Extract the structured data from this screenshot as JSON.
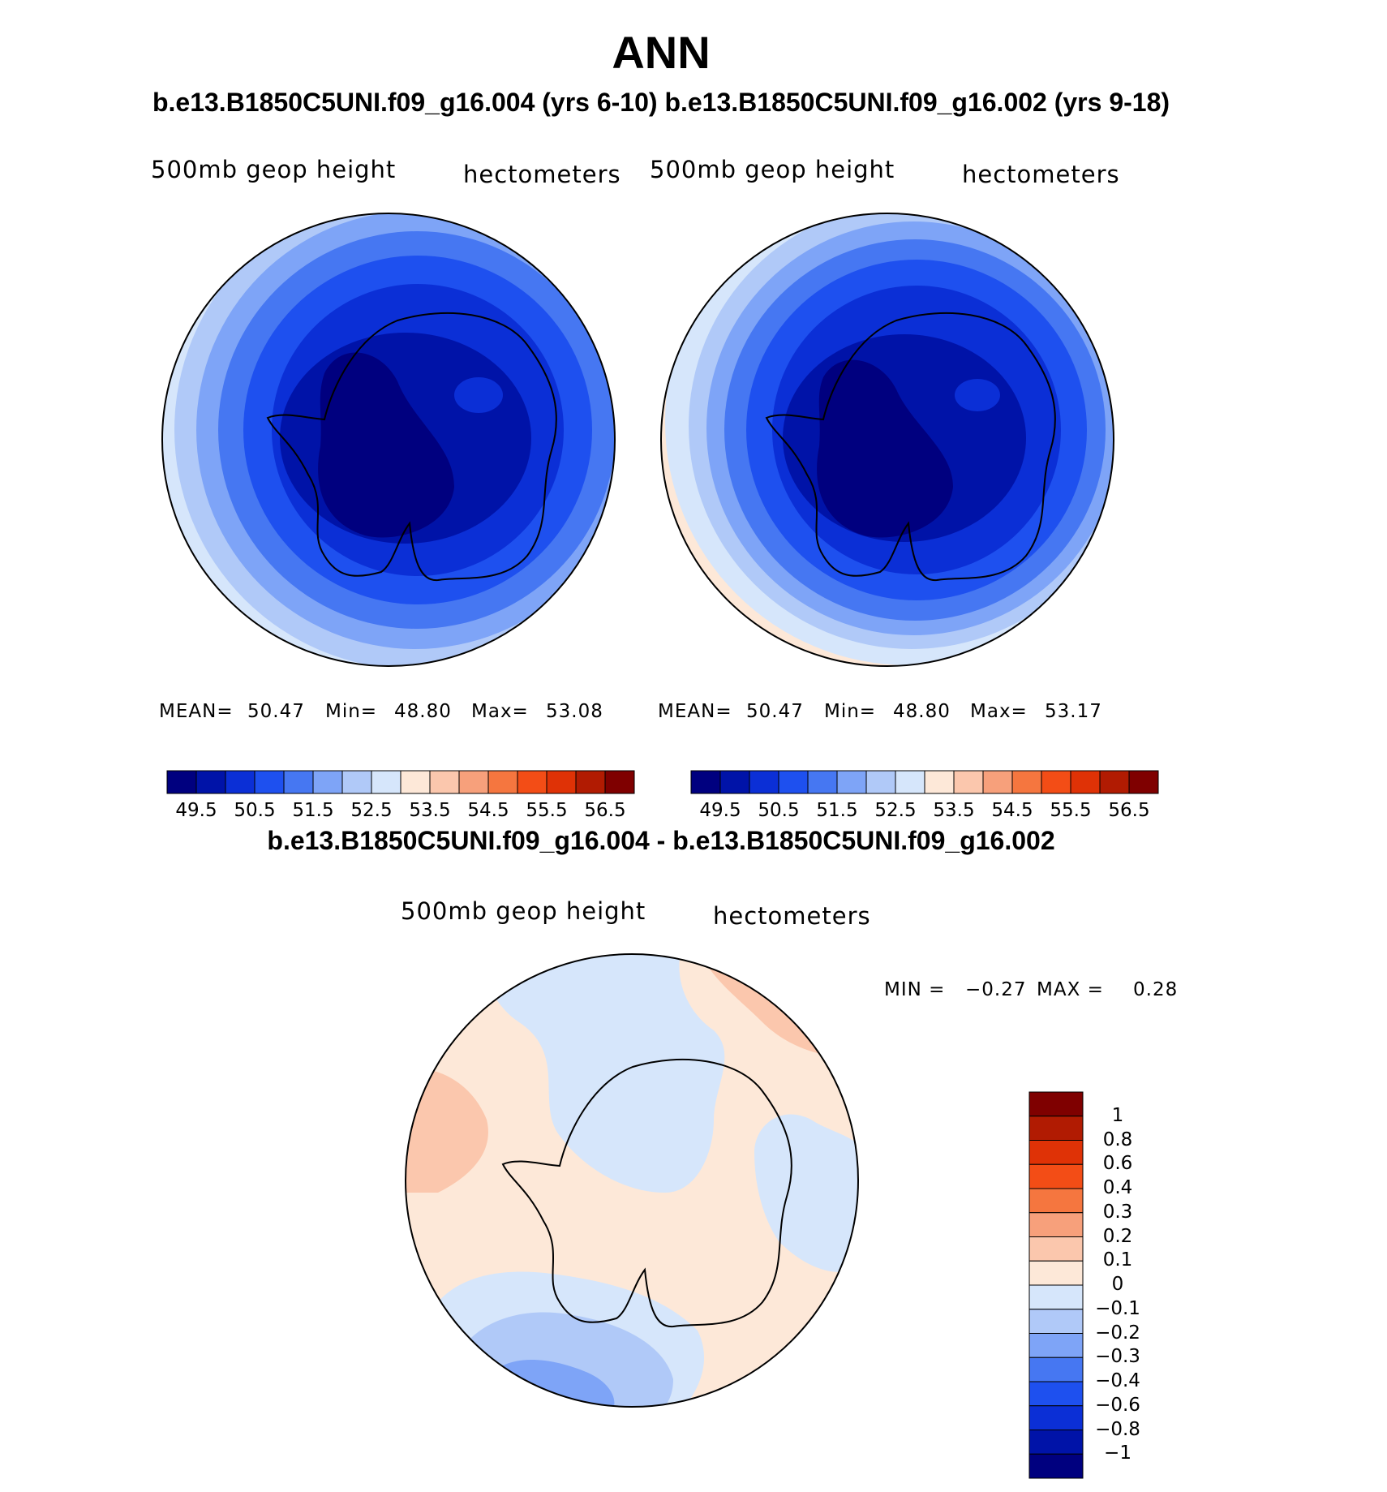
{
  "title": "ANN",
  "top_subtitle": "b.e13.B1850C5UNI.f09_g16.004 (yrs 6-10) b.e13.B1850C5UNI.f09_g16.002 (yrs 9-18)",
  "diff_subtitle": "b.e13.B1850C5UNI.f09_g16.004 - b.e13.B1850C5UNI.f09_g16.002",
  "panels": [
    {
      "variable": "500mb geop height",
      "units": "hectometers",
      "stats": {
        "mean_label": "MEAN=",
        "mean": "50.47",
        "min_label": "Min=",
        "min": "48.80",
        "max_label": "Max=",
        "max": "53.08"
      }
    },
    {
      "variable": "500mb geop height",
      "units": "hectometers",
      "stats": {
        "mean_label": "MEAN=",
        "mean": "50.47",
        "min_label": "Min=",
        "min": "48.80",
        "max_label": "Max=",
        "max": "53.17"
      }
    }
  ],
  "diff_panel": {
    "variable": "500mb geop height",
    "units": "hectometers",
    "min_label": "MIN =",
    "min": "−0.27",
    "max_label": "MAX =",
    "max": "0.28"
  },
  "abs_colorbar": {
    "labels": [
      "49.5",
      "50.5",
      "51.5",
      "52.5",
      "53.5",
      "54.5",
      "55.5",
      "56.5"
    ],
    "colors": [
      "#00007f",
      "#0013a8",
      "#0b2fd6",
      "#1e50ef",
      "#4677f2",
      "#7ea4f7",
      "#b0c9f8",
      "#d6e6fb",
      "#fde8d8",
      "#fbc7ad",
      "#f7a07b",
      "#f5763f",
      "#f34d16",
      "#df3206",
      "#b11b02",
      "#7f0000"
    ]
  },
  "diff_colorbar": {
    "labels": [
      "1",
      "0.8",
      "0.6",
      "0.4",
      "0.3",
      "0.2",
      "0.1",
      "0",
      "−0.1",
      "−0.2",
      "−0.3",
      "−0.4",
      "−0.6",
      "−0.8",
      "−1"
    ],
    "colors": [
      "#7f0000",
      "#b11b02",
      "#df3206",
      "#f34d16",
      "#f5763f",
      "#f7a07b",
      "#fbc7ad",
      "#fde8d8",
      "#d6e6fb",
      "#b0c9f8",
      "#7ea4f7",
      "#4677f2",
      "#1e50ef",
      "#0b2fd6",
      "#0013a8",
      "#00007f"
    ]
  }
}
